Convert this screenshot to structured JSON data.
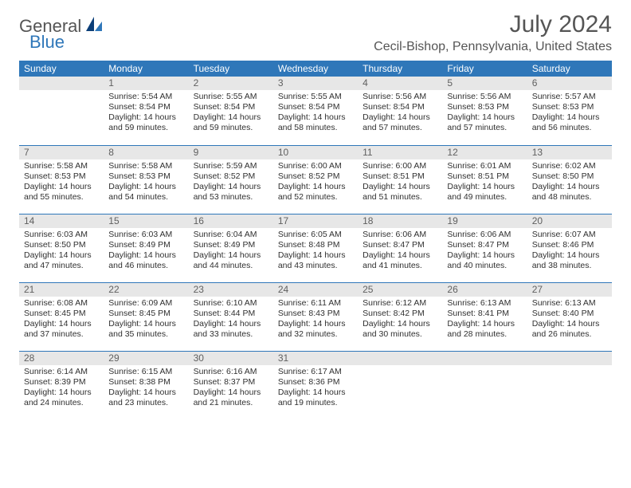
{
  "brand": {
    "general": "General",
    "blue": "Blue"
  },
  "title": {
    "month": "July 2024",
    "location": "Cecil-Bishop, Pennsylvania, United States"
  },
  "colors": {
    "header_bg": "#2f77b9",
    "header_fg": "#ffffff",
    "daynum_bg": "#e7e7e7",
    "daynum_fg": "#606060",
    "rule": "#2f77b9",
    "text": "#303030"
  },
  "weekdays": [
    "Sunday",
    "Monday",
    "Tuesday",
    "Wednesday",
    "Thursday",
    "Friday",
    "Saturday"
  ],
  "weeks": [
    [
      null,
      {
        "n": "1",
        "sunrise": "5:54 AM",
        "sunset": "8:54 PM",
        "daylight": "14 hours and 59 minutes."
      },
      {
        "n": "2",
        "sunrise": "5:55 AM",
        "sunset": "8:54 PM",
        "daylight": "14 hours and 59 minutes."
      },
      {
        "n": "3",
        "sunrise": "5:55 AM",
        "sunset": "8:54 PM",
        "daylight": "14 hours and 58 minutes."
      },
      {
        "n": "4",
        "sunrise": "5:56 AM",
        "sunset": "8:54 PM",
        "daylight": "14 hours and 57 minutes."
      },
      {
        "n": "5",
        "sunrise": "5:56 AM",
        "sunset": "8:53 PM",
        "daylight": "14 hours and 57 minutes."
      },
      {
        "n": "6",
        "sunrise": "5:57 AM",
        "sunset": "8:53 PM",
        "daylight": "14 hours and 56 minutes."
      }
    ],
    [
      {
        "n": "7",
        "sunrise": "5:58 AM",
        "sunset": "8:53 PM",
        "daylight": "14 hours and 55 minutes."
      },
      {
        "n": "8",
        "sunrise": "5:58 AM",
        "sunset": "8:53 PM",
        "daylight": "14 hours and 54 minutes."
      },
      {
        "n": "9",
        "sunrise": "5:59 AM",
        "sunset": "8:52 PM",
        "daylight": "14 hours and 53 minutes."
      },
      {
        "n": "10",
        "sunrise": "6:00 AM",
        "sunset": "8:52 PM",
        "daylight": "14 hours and 52 minutes."
      },
      {
        "n": "11",
        "sunrise": "6:00 AM",
        "sunset": "8:51 PM",
        "daylight": "14 hours and 51 minutes."
      },
      {
        "n": "12",
        "sunrise": "6:01 AM",
        "sunset": "8:51 PM",
        "daylight": "14 hours and 49 minutes."
      },
      {
        "n": "13",
        "sunrise": "6:02 AM",
        "sunset": "8:50 PM",
        "daylight": "14 hours and 48 minutes."
      }
    ],
    [
      {
        "n": "14",
        "sunrise": "6:03 AM",
        "sunset": "8:50 PM",
        "daylight": "14 hours and 47 minutes."
      },
      {
        "n": "15",
        "sunrise": "6:03 AM",
        "sunset": "8:49 PM",
        "daylight": "14 hours and 46 minutes."
      },
      {
        "n": "16",
        "sunrise": "6:04 AM",
        "sunset": "8:49 PM",
        "daylight": "14 hours and 44 minutes."
      },
      {
        "n": "17",
        "sunrise": "6:05 AM",
        "sunset": "8:48 PM",
        "daylight": "14 hours and 43 minutes."
      },
      {
        "n": "18",
        "sunrise": "6:06 AM",
        "sunset": "8:47 PM",
        "daylight": "14 hours and 41 minutes."
      },
      {
        "n": "19",
        "sunrise": "6:06 AM",
        "sunset": "8:47 PM",
        "daylight": "14 hours and 40 minutes."
      },
      {
        "n": "20",
        "sunrise": "6:07 AM",
        "sunset": "8:46 PM",
        "daylight": "14 hours and 38 minutes."
      }
    ],
    [
      {
        "n": "21",
        "sunrise": "6:08 AM",
        "sunset": "8:45 PM",
        "daylight": "14 hours and 37 minutes."
      },
      {
        "n": "22",
        "sunrise": "6:09 AM",
        "sunset": "8:45 PM",
        "daylight": "14 hours and 35 minutes."
      },
      {
        "n": "23",
        "sunrise": "6:10 AM",
        "sunset": "8:44 PM",
        "daylight": "14 hours and 33 minutes."
      },
      {
        "n": "24",
        "sunrise": "6:11 AM",
        "sunset": "8:43 PM",
        "daylight": "14 hours and 32 minutes."
      },
      {
        "n": "25",
        "sunrise": "6:12 AM",
        "sunset": "8:42 PM",
        "daylight": "14 hours and 30 minutes."
      },
      {
        "n": "26",
        "sunrise": "6:13 AM",
        "sunset": "8:41 PM",
        "daylight": "14 hours and 28 minutes."
      },
      {
        "n": "27",
        "sunrise": "6:13 AM",
        "sunset": "8:40 PM",
        "daylight": "14 hours and 26 minutes."
      }
    ],
    [
      {
        "n": "28",
        "sunrise": "6:14 AM",
        "sunset": "8:39 PM",
        "daylight": "14 hours and 24 minutes."
      },
      {
        "n": "29",
        "sunrise": "6:15 AM",
        "sunset": "8:38 PM",
        "daylight": "14 hours and 23 minutes."
      },
      {
        "n": "30",
        "sunrise": "6:16 AM",
        "sunset": "8:37 PM",
        "daylight": "14 hours and 21 minutes."
      },
      {
        "n": "31",
        "sunrise": "6:17 AM",
        "sunset": "8:36 PM",
        "daylight": "14 hours and 19 minutes."
      },
      null,
      null,
      null
    ]
  ],
  "labels": {
    "sunrise": "Sunrise:",
    "sunset": "Sunset:",
    "daylight": "Daylight:"
  }
}
